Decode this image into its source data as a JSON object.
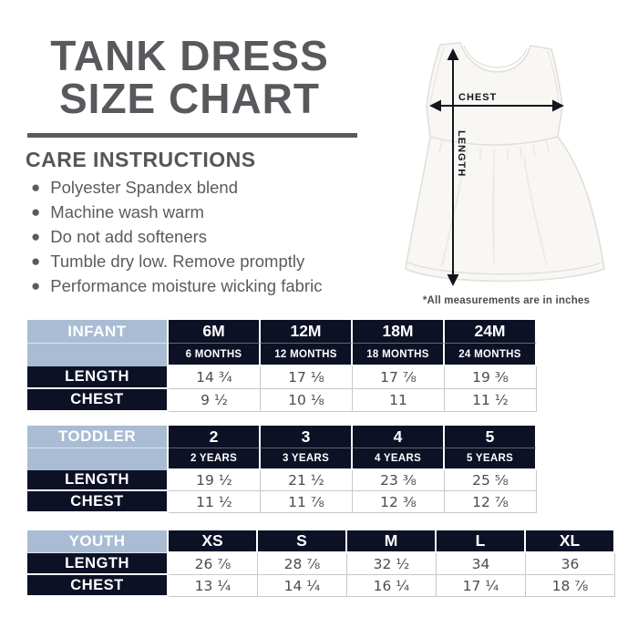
{
  "title": {
    "line1": "TANK DRESS",
    "line2": "SIZE CHART"
  },
  "care": {
    "heading": "CARE INSTRUCTIONS",
    "items": [
      "Polyester Spandex blend",
      "Machine wash warm",
      "Do not add softeners",
      "Tumble dry low. Remove promptly",
      "Performance moisture wicking fabric"
    ]
  },
  "diagram": {
    "chest_label": "CHEST",
    "length_label": "LENGTH",
    "footnote": "*All measurements are in inches"
  },
  "colors": {
    "heading_gray": "#58595c",
    "body_text_gray": "#5a5b5e",
    "table_navy": "#0d1126",
    "table_blue": "#a9bcd3",
    "value_text": "#4c4c4e",
    "grid_line": "#c8c8c8",
    "arrow_black": "#15151f"
  },
  "tables": [
    {
      "id": "infant",
      "group": "INFANT",
      "sizes": [
        "6M",
        "12M",
        "18M",
        "24M"
      ],
      "size_subs": [
        "6 MONTHS",
        "12 MONTHS",
        "18 MONTHS",
        "24 MONTHS"
      ],
      "rows": [
        {
          "label": "LENGTH",
          "values": [
            "14 ¾",
            "17 ⅛",
            "17 ⅞",
            "19 ⅜"
          ]
        },
        {
          "label": "CHEST",
          "values": [
            "9 ½",
            "10 ⅛",
            "11",
            "11 ½"
          ]
        }
      ]
    },
    {
      "id": "toddler",
      "group": "TODDLER",
      "sizes": [
        "2",
        "3",
        "4",
        "5"
      ],
      "size_subs": [
        "2 YEARS",
        "3 YEARS",
        "4 YEARS",
        "5 YEARS"
      ],
      "rows": [
        {
          "label": "LENGTH",
          "values": [
            "19 ½",
            "21 ½",
            "23 ⅜",
            "25 ⅝"
          ]
        },
        {
          "label": "CHEST",
          "values": [
            "11 ½",
            "11 ⅞",
            "12 ⅜",
            "12 ⅞"
          ]
        }
      ]
    },
    {
      "id": "youth",
      "group": "YOUTH",
      "sizes": [
        "XS",
        "S",
        "M",
        "L",
        "XL"
      ],
      "size_subs": null,
      "rows": [
        {
          "label": "LENGTH",
          "values": [
            "26 ⅞",
            "28 ⅞",
            "32 ½",
            "34",
            "36"
          ]
        },
        {
          "label": "CHEST",
          "values": [
            "13 ¼",
            "14 ¼",
            "16 ¼",
            "17 ¼",
            "18 ⅞"
          ]
        }
      ]
    }
  ]
}
